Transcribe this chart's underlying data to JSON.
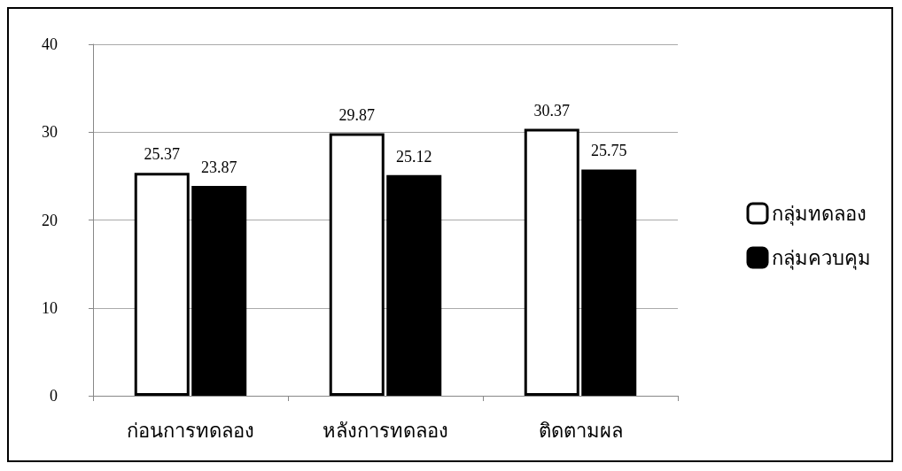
{
  "chart_data": {
    "type": "bar",
    "categories": [
      "ก่อนการทดลอง",
      "หลังการทดลอง",
      "ติดตามผล"
    ],
    "series": [
      {
        "name": "กลุ่มทดลอง",
        "color": "#ffffff",
        "values": [
          25.37,
          29.87,
          30.37
        ]
      },
      {
        "name": "กลุ่มควบคุม",
        "color": "#000000",
        "values": [
          23.87,
          25.12,
          25.75
        ]
      }
    ],
    "ylim": [
      0,
      40
    ],
    "yticks": [
      0,
      10,
      20,
      30,
      40
    ],
    "grid": "y",
    "legend": "right",
    "data_labels": true
  }
}
